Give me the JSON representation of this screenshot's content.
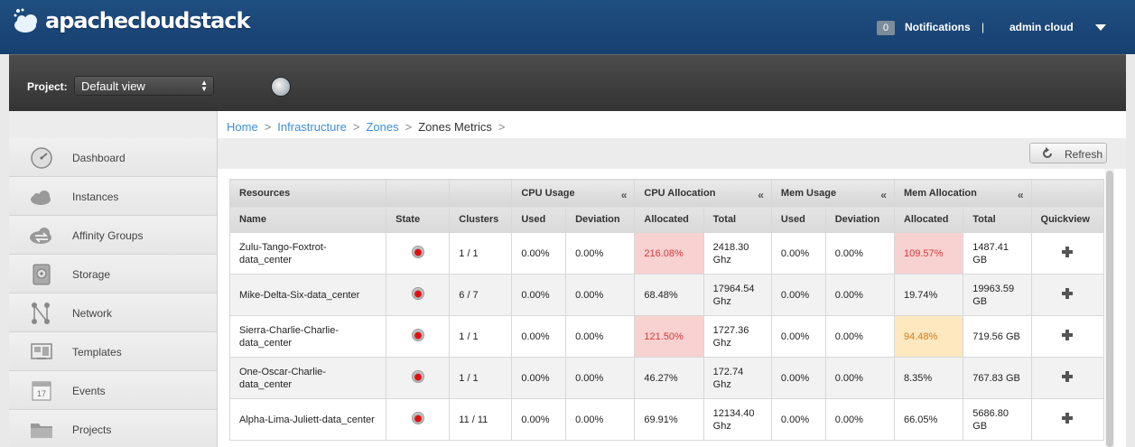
{
  "header": {
    "logo_text": "apachecloudstack",
    "notification_count": "0",
    "notifications_label": "Notifications",
    "separator": "|",
    "user_label": "admin cloud"
  },
  "project": {
    "label": "Project:",
    "selected": "Default view"
  },
  "sidebar": {
    "items": [
      {
        "label": "Dashboard",
        "icon": "dashboard-icon"
      },
      {
        "label": "Instances",
        "icon": "cloud-icon"
      },
      {
        "label": "Affinity Groups",
        "icon": "affinity-icon"
      },
      {
        "label": "Storage",
        "icon": "storage-icon"
      },
      {
        "label": "Network",
        "icon": "network-icon"
      },
      {
        "label": "Templates",
        "icon": "templates-icon"
      },
      {
        "label": "Events",
        "icon": "calendar-icon"
      },
      {
        "label": "Projects",
        "icon": "folder-icon"
      }
    ]
  },
  "breadcrumb": {
    "items": [
      "Home",
      "Infrastructure",
      "Zones"
    ],
    "current": "Zones Metrics",
    "separator": ">"
  },
  "toolbar": {
    "refresh_label": "Refresh"
  },
  "table": {
    "groups": {
      "resources": "Resources",
      "cpu_usage": "CPU Usage",
      "cpu_allocation": "CPU Allocation",
      "mem_usage": "Mem Usage",
      "mem_allocation": "Mem Allocation",
      "collapse_glyph": "«"
    },
    "columns": {
      "name": "Name",
      "state": "State",
      "clusters": "Clusters",
      "cpu_used": "Used",
      "cpu_deviation": "Deviation",
      "cpu_allocated": "Allocated",
      "cpu_total": "Total",
      "mem_used": "Used",
      "mem_deviation": "Deviation",
      "mem_allocated": "Allocated",
      "mem_total": "Total",
      "quickview": "Quickview"
    },
    "rows": [
      {
        "name": "Zulu-Tango-Foxtrot-data_center",
        "clusters": "1 / 1",
        "cpu_used": "0.00%",
        "cpu_dev": "0.00%",
        "cpu_alloc": "216.08%",
        "cpu_alloc_status": "red",
        "cpu_total": "2418.30 Ghz",
        "mem_used": "0.00%",
        "mem_dev": "0.00%",
        "mem_alloc": "109.57%",
        "mem_alloc_status": "red",
        "mem_total": "1487.41 GB"
      },
      {
        "name": "Mike-Delta-Six-data_center",
        "clusters": "6 / 7",
        "cpu_used": "0.00%",
        "cpu_dev": "0.00%",
        "cpu_alloc": "68.48%",
        "cpu_alloc_status": "normal",
        "cpu_total": "17964.54 Ghz",
        "mem_used": "0.00%",
        "mem_dev": "0.00%",
        "mem_alloc": "19.74%",
        "mem_alloc_status": "normal",
        "mem_total": "19963.59 GB"
      },
      {
        "name": "Sierra-Charlie-Charlie-data_center",
        "clusters": "1 / 1",
        "cpu_used": "0.00%",
        "cpu_dev": "0.00%",
        "cpu_alloc": "121.50%",
        "cpu_alloc_status": "red",
        "cpu_total": "1727.36 Ghz",
        "mem_used": "0.00%",
        "mem_dev": "0.00%",
        "mem_alloc": "94.48%",
        "mem_alloc_status": "orange",
        "mem_total": "719.56 GB"
      },
      {
        "name": "One-Oscar-Charlie-data_center",
        "clusters": "1 / 1",
        "cpu_used": "0.00%",
        "cpu_dev": "0.00%",
        "cpu_alloc": "46.27%",
        "cpu_alloc_status": "normal",
        "cpu_total": "172.74 Ghz",
        "mem_used": "0.00%",
        "mem_dev": "0.00%",
        "mem_alloc": "8.35%",
        "mem_alloc_status": "normal",
        "mem_total": "767.83 GB"
      },
      {
        "name": "Alpha-Lima-Juliett-data_center",
        "clusters": "11 / 11",
        "cpu_used": "0.00%",
        "cpu_dev": "0.00%",
        "cpu_alloc": "69.91%",
        "cpu_alloc_status": "normal",
        "cpu_total": "12134.40 Ghz",
        "mem_used": "0.00%",
        "mem_dev": "0.00%",
        "mem_alloc": "66.05%",
        "mem_alloc_status": "normal",
        "mem_total": "5686.80 GB"
      }
    ]
  },
  "colors": {
    "header_blue": "#1f4e80",
    "link_blue": "#3e8fd9",
    "alert_red_bg": "#f8d1d1",
    "alert_red_text": "#d73a3a",
    "alert_orange_bg": "#fde8bf",
    "alert_orange_text": "#d87a16",
    "state_red": "#e31010"
  }
}
